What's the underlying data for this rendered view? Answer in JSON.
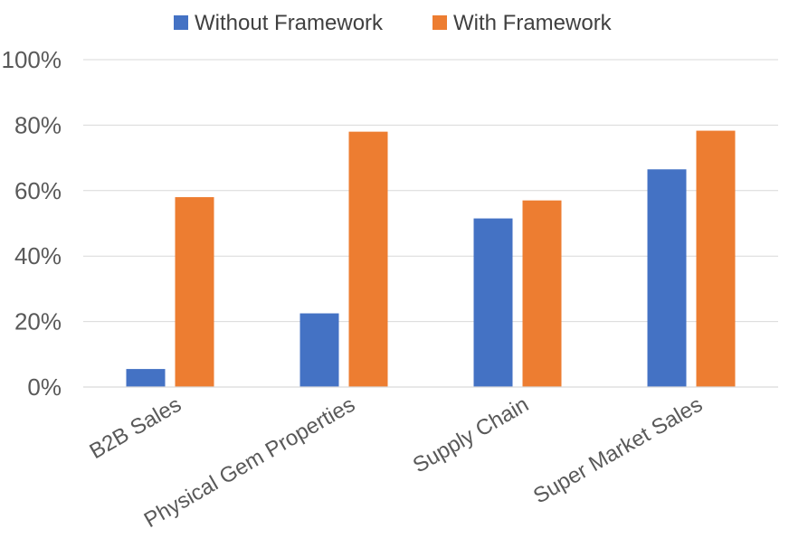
{
  "chart_data": {
    "type": "bar",
    "categories": [
      "B2B Sales",
      "Physical Gem Properties",
      "Supply Chain",
      "Super Market Sales"
    ],
    "series": [
      {
        "name": "Without Framework",
        "color": "#4472C4",
        "values": [
          5.5,
          22.5,
          51.5,
          66.5
        ]
      },
      {
        "name": "With Framework",
        "color": "#ED7D31",
        "values": [
          58,
          78,
          57,
          78.3
        ]
      }
    ],
    "y_ticks": [
      "0%",
      "20%",
      "40%",
      "60%",
      "80%",
      "100%"
    ],
    "ylim": [
      0,
      100
    ],
    "grid": true,
    "legend_position": "top-center",
    "title": "",
    "xlabel": "",
    "ylabel": ""
  }
}
